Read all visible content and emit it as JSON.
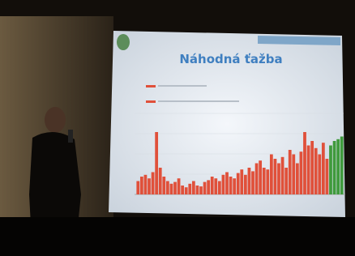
{
  "slide": {
    "title": "Náhodná ťažba",
    "bars": [
      {
        "color": "#e0503a",
        "values": [
          15,
          20,
          22,
          18,
          25,
          70,
          30,
          20,
          15,
          12,
          14,
          18,
          10,
          8,
          12,
          15,
          10,
          9,
          14,
          16,
          20,
          18,
          15,
          22,
          25,
          20,
          18,
          24,
          28,
          22,
          30,
          26,
          35,
          38,
          30,
          28,
          45,
          40,
          35,
          42,
          30,
          50,
          45,
          35,
          48,
          70,
          55,
          60,
          52,
          45,
          58,
          40
        ]
      },
      {
        "color": "#3f9a3c",
        "values": [
          55,
          60,
          62,
          65
        ]
      }
    ]
  }
}
